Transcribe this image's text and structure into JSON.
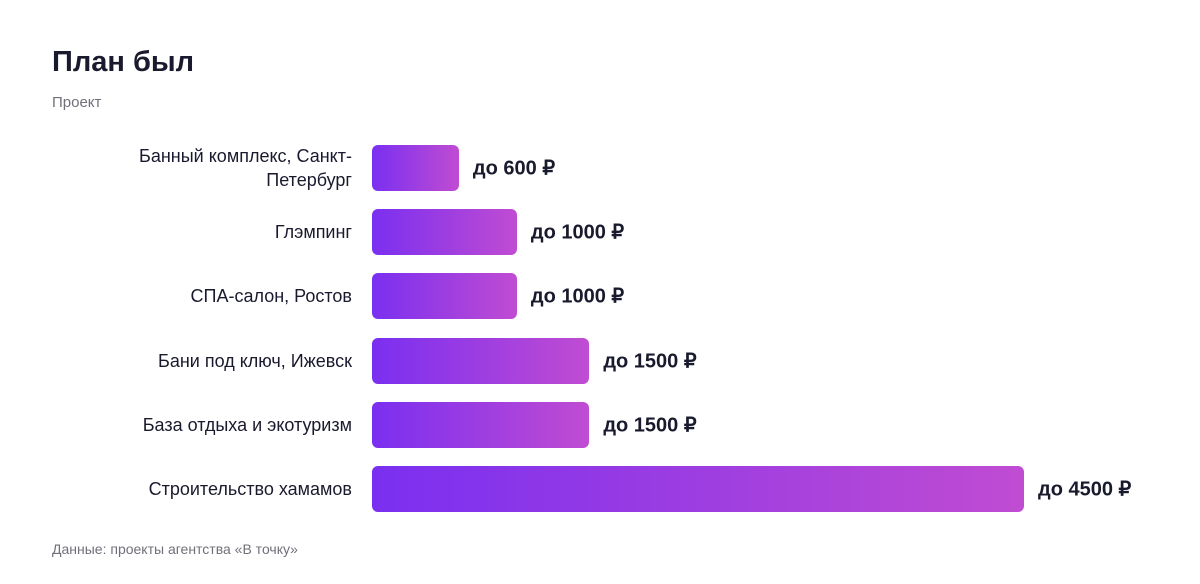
{
  "chart_data": {
    "type": "bar",
    "orientation": "horizontal",
    "title": "План был",
    "subtitle": "Проект",
    "categories": [
      "Банный комплекс, Санкт-Петербург",
      "Глэмпинг",
      "СПА-салон, Ростов",
      "Бани под ключ, Ижевск",
      "База отдыха и экотуризм",
      "Строительство хамамов"
    ],
    "values": [
      600,
      1000,
      1000,
      1500,
      1500,
      4500
    ],
    "value_labels": [
      "до 600 ₽",
      "до 1000 ₽",
      "до 1000 ₽",
      "до 1500 ₽",
      "до 1500 ₽",
      "до 4500 ₽"
    ],
    "colors": [
      "#7a2ff0",
      "#c04cd2"
    ],
    "source": "Данные: проекты агентства «В точку»"
  }
}
